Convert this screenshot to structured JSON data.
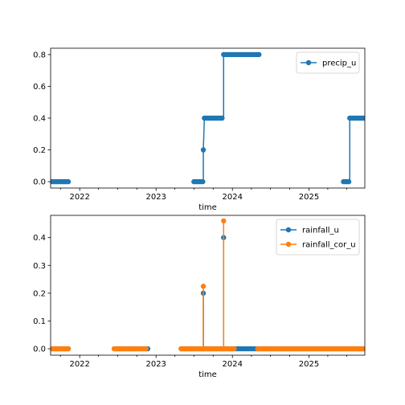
{
  "colors": {
    "blue": "#1f77b4",
    "orange": "#ff7f0e"
  },
  "chart_data": [
    {
      "type": "line",
      "xlabel": "time",
      "ylabel": "",
      "xlim": [
        "2021-08-15",
        "2025-09-25"
      ],
      "ylim": [
        -0.04,
        0.84
      ],
      "x_ticks": [
        "2022",
        "2023",
        "2024",
        "2025"
      ],
      "y_ticks": [
        "0.0",
        "0.2",
        "0.4",
        "0.6",
        "0.8"
      ],
      "legend_position": "top-right",
      "grid": false,
      "series": [
        {
          "name": "precip_u",
          "color": "blue",
          "segments": [
            {
              "x_start": "2021-08-15",
              "x_end": "2021-11-15",
              "y": 0.0
            },
            {
              "x_start": "2023-07-01",
              "x_end": "2023-08-15",
              "y": 0.0
            },
            {
              "x_start": "2023-08-15",
              "x_end": "2023-08-15",
              "y": 0.2
            },
            {
              "x_start": "2023-08-20",
              "x_end": "2023-11-20",
              "y": 0.4
            },
            {
              "x_start": "2023-11-20",
              "x_end": "2024-05-15",
              "y": 0.8
            },
            {
              "x_start": "2025-06-15",
              "x_end": "2025-07-15",
              "y": 0.0
            },
            {
              "x_start": "2025-07-15",
              "x_end": "2025-09-25",
              "y": 0.4
            }
          ]
        }
      ]
    },
    {
      "type": "line",
      "xlabel": "time",
      "ylabel": "",
      "xlim": [
        "2021-08-15",
        "2025-09-25"
      ],
      "ylim": [
        -0.023,
        0.48
      ],
      "x_ticks": [
        "2022",
        "2023",
        "2024",
        "2025"
      ],
      "y_ticks": [
        "0.0",
        "0.1",
        "0.2",
        "0.3",
        "0.4"
      ],
      "legend_position": "top-right",
      "grid": false,
      "series": [
        {
          "name": "rainfall_u",
          "color": "blue",
          "baseline_segments": [
            {
              "x_start": "2021-08-15",
              "x_end": "2021-11-15"
            },
            {
              "x_start": "2022-06-15",
              "x_end": "2022-11-25"
            },
            {
              "x_start": "2023-05-01",
              "x_end": "2025-09-25"
            }
          ],
          "spikes": [
            {
              "x": "2023-08-15",
              "y": 0.2
            },
            {
              "x": "2023-11-20",
              "y": 0.4
            }
          ]
        },
        {
          "name": "rainfall_cor_u",
          "color": "orange",
          "baseline_segments": [
            {
              "x_start": "2021-08-15",
              "x_end": "2021-11-15"
            },
            {
              "x_start": "2022-06-15",
              "x_end": "2022-11-15"
            },
            {
              "x_start": "2023-05-01",
              "x_end": "2024-01-10"
            },
            {
              "x_start": "2024-05-01",
              "x_end": "2025-09-25"
            }
          ],
          "spikes": [
            {
              "x": "2023-08-15",
              "y": 0.225
            },
            {
              "x": "2023-11-20",
              "y": 0.46
            }
          ]
        }
      ]
    }
  ]
}
